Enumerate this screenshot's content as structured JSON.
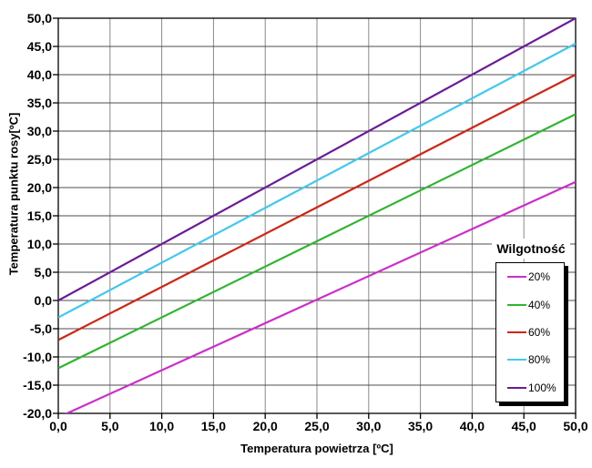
{
  "chart_data": {
    "type": "line",
    "title": "",
    "xlabel": "Temperatura powietrza [ºC]",
    "ylabel": "Temperatura punktu rosy[ºC]",
    "xlim": [
      0,
      50
    ],
    "ylim": [
      -20,
      50
    ],
    "grid": true,
    "x_tick_values": [
      0,
      5,
      10,
      15,
      20,
      25,
      30,
      35,
      40,
      45,
      50
    ],
    "x_tick_labels": [
      "0,0",
      "5,0",
      "10,0",
      "15,0",
      "20,0",
      "25,0",
      "30,0",
      "35,0",
      "40,0",
      "45,0",
      "50,0"
    ],
    "y_tick_values": [
      50,
      45,
      40,
      35,
      30,
      25,
      20,
      15,
      10,
      5,
      0,
      -5,
      -10,
      -15,
      -20
    ],
    "y_tick_labels": [
      "50,0",
      "45,0",
      "40,0",
      "35,0",
      "30,0",
      "25,0",
      "20,0",
      "15,0",
      "10,0",
      "5,0",
      "0,0",
      "-5,0",
      "-10,0",
      "-15,0",
      "-20,0"
    ],
    "legend": {
      "title": "Wilgotność",
      "position": "inside-right",
      "entries": [
        "20%",
        "40%",
        "60%",
        "80%",
        "100%"
      ]
    },
    "series": [
      {
        "name": "20%",
        "color": "#CB2FCB",
        "points": [
          [
            0,
            -20.7
          ],
          [
            50,
            21
          ]
        ]
      },
      {
        "name": "40%",
        "color": "#2FB52F",
        "points": [
          [
            0,
            -12
          ],
          [
            50,
            33
          ]
        ]
      },
      {
        "name": "60%",
        "color": "#D02513",
        "points": [
          [
            0,
            -7
          ],
          [
            50,
            40
          ]
        ]
      },
      {
        "name": "80%",
        "color": "#41C8F0",
        "points": [
          [
            0,
            -3
          ],
          [
            50,
            45.5
          ]
        ]
      },
      {
        "name": "100%",
        "color": "#6B1A99",
        "points": [
          [
            0,
            0
          ],
          [
            50,
            50
          ]
        ]
      }
    ],
    "colors": {
      "axis": "#000000",
      "grid_horizontal": "#4d4d4d",
      "grid_vertical": "#8a8a8a",
      "background": "#ffffff"
    }
  }
}
